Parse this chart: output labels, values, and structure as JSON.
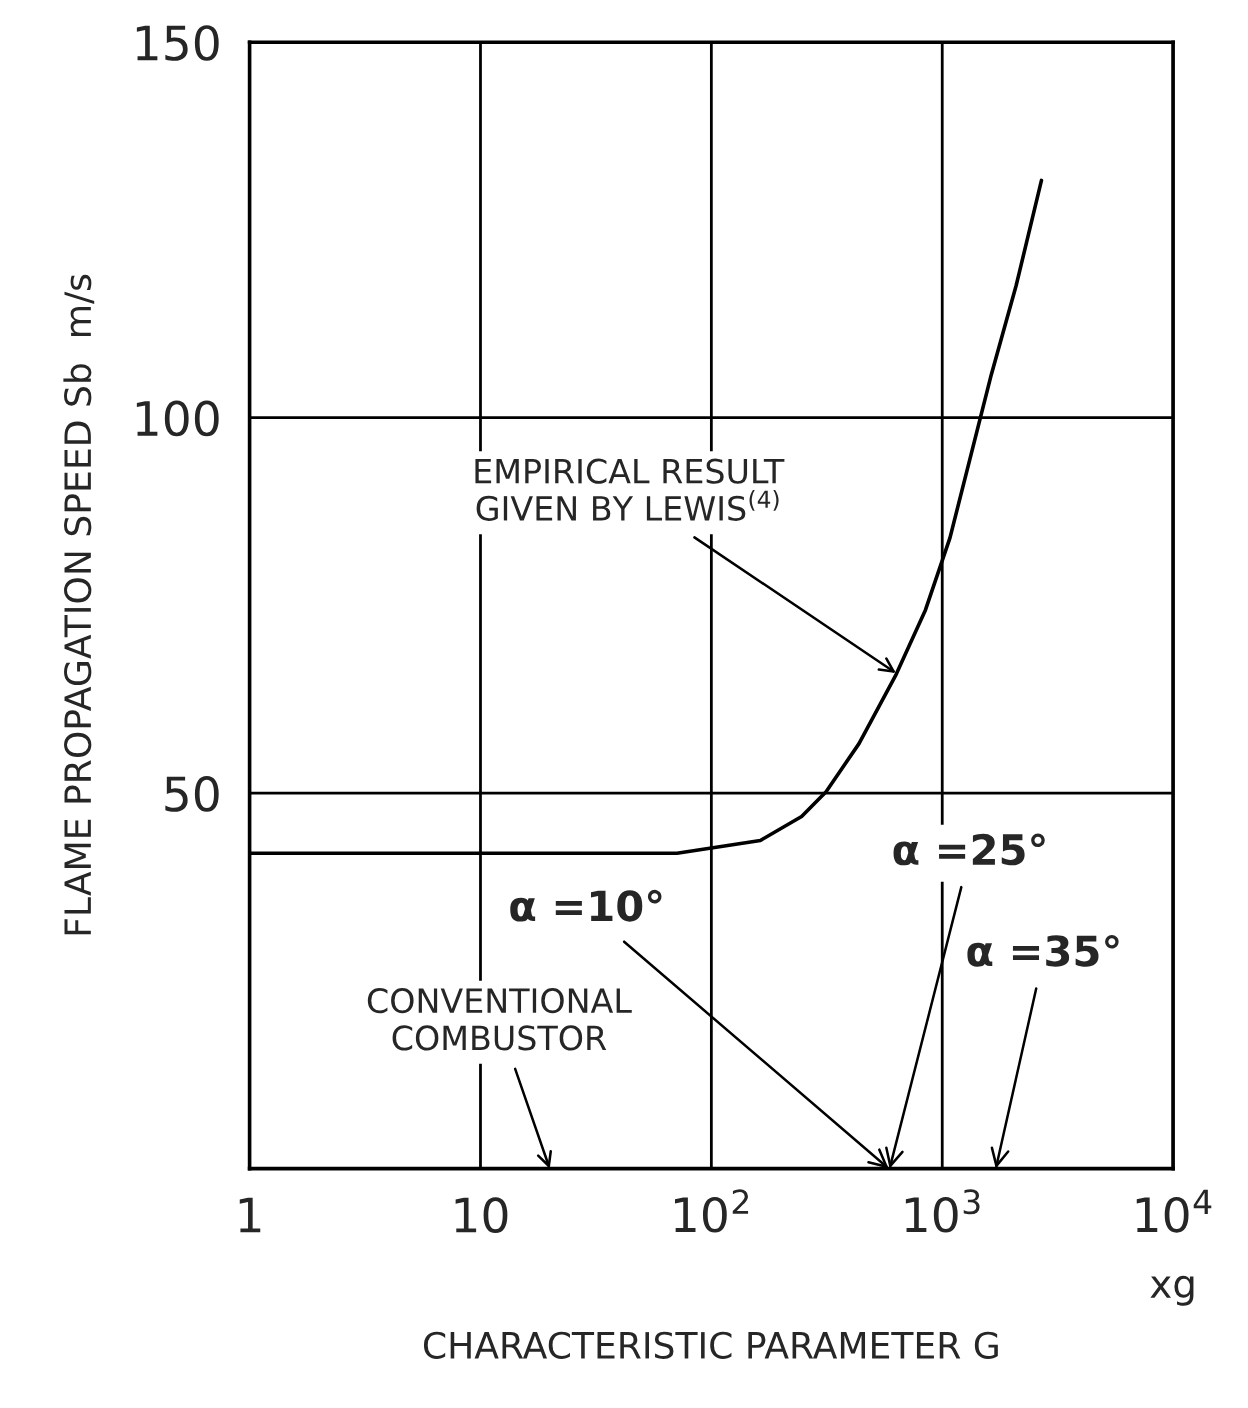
{
  "chart_data": {
    "type": "line",
    "xlabel": "CHARACTERISTIC PARAMETER G",
    "ylabel": "FLAME PROPAGATION SPEED Sb  m/s",
    "series": [
      {
        "color": "#000000",
        "x": [
          1,
          16,
          71,
          163,
          246,
          314,
          436,
          631,
          846,
          1080,
          1630,
          2090,
          2690
        ],
        "values": [
          42,
          42,
          42,
          43.7,
          46.9,
          50.2,
          56.6,
          65.8,
          74.4,
          84,
          105.7,
          117.6,
          131.6
        ]
      }
    ],
    "log": "x",
    "xlim": [
      1,
      10000
    ],
    "xticks": [
      1,
      10,
      {
        "value": 100,
        "label": "10$^{2}$"
      },
      {
        "value": 1000,
        "label": "10$^{3}$"
      },
      {
        "value": 10000,
        "label": "10$^{4}$"
      }
    ],
    "ylim": [
      0,
      150
    ],
    "yticks": [
      50,
      100,
      150
    ],
    "grid": true,
    "marker": "none",
    "line_style": "solid",
    "annotations": [
      {
        "text": "EMPIRICAL RESULT\nGIVEN BY LEWIS$^{(4)}$",
        "x": 630,
        "y": 66
      },
      "α =10°",
      "α =25°",
      "α =35°",
      "CONVENTIONAL\nCOMBUSTOR",
      "xg"
    ]
  }
}
